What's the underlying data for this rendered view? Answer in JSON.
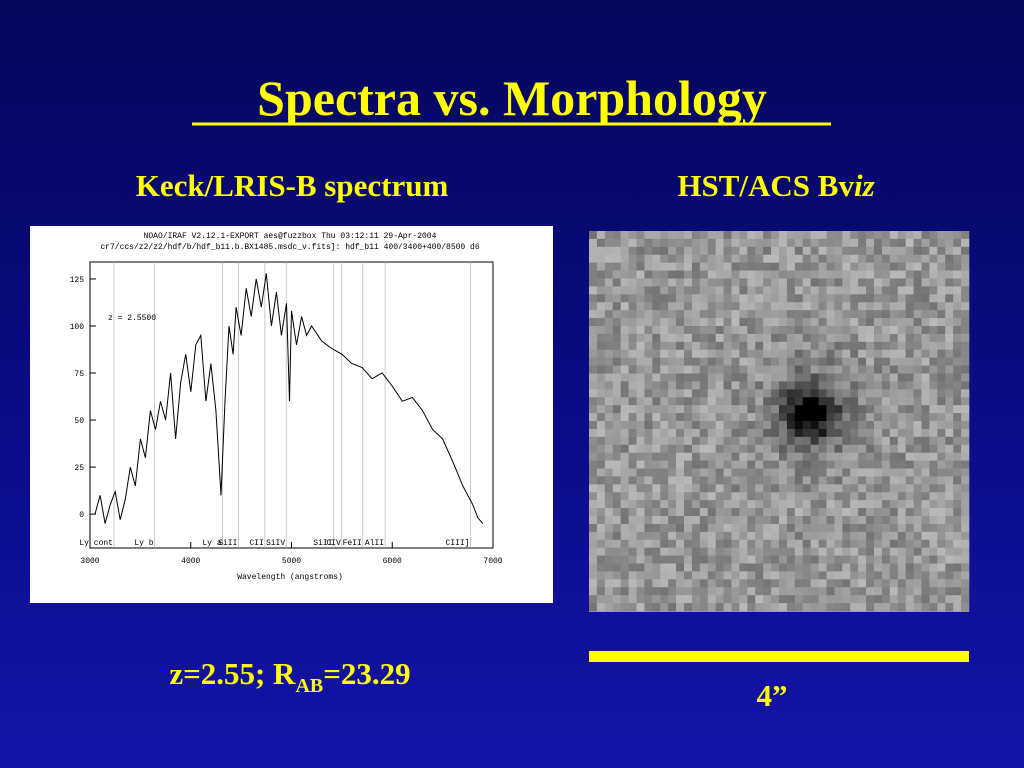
{
  "slide": {
    "title": "Spectra vs. Morphology",
    "left_heading": "Keck/LRIS-B spectrum",
    "right_heading": [
      "HST/ACS Bv",
      "iz"
    ],
    "caption": [
      "z=2.55; R",
      "AB",
      "=23.29"
    ],
    "scale_label": "4”"
  },
  "spectrum": {
    "header": [
      "NOAO/IRAF V2.12.1-EXPORT aes@fuzzbox Thu 03:12:11 29-Apr-2004",
      "cr7/ccs/z2/z2/hdf/b/hdf_b11.b.BX1485.msdc_v.fits]: hdf_b11 400/3400+400/8500 d6"
    ],
    "annotation": "z = 2.5500",
    "xlabel": "Wavelength (angstroms)",
    "xlim": [
      3000,
      7000
    ],
    "ylim": [
      -18,
      134
    ],
    "xticks": [
      3000,
      4000,
      5000,
      6000,
      7000
    ],
    "yticks": [
      0,
      25,
      50,
      75,
      100,
      125
    ],
    "color": "#000000",
    "x": [
      3050,
      3100,
      3150,
      3200,
      3250,
      3300,
      3350,
      3400,
      3450,
      3500,
      3550,
      3600,
      3650,
      3700,
      3750,
      3800,
      3850,
      3900,
      3950,
      4000,
      4050,
      4100,
      4150,
      4200,
      4250,
      4300,
      4340,
      4380,
      4420,
      4450,
      4500,
      4550,
      4600,
      4650,
      4700,
      4750,
      4800,
      4850,
      4900,
      4950,
      4980,
      5000,
      5050,
      5100,
      5150,
      5200,
      5300,
      5400,
      5500,
      5600,
      5700,
      5800,
      5900,
      6000,
      6100,
      6200,
      6300,
      6400,
      6500,
      6600,
      6700,
      6800,
      6850,
      6900
    ],
    "values": [
      0,
      10,
      -5,
      5,
      12,
      -3,
      8,
      25,
      15,
      40,
      30,
      55,
      45,
      60,
      50,
      75,
      40,
      70,
      85,
      65,
      90,
      95,
      60,
      80,
      55,
      10,
      60,
      100,
      85,
      110,
      95,
      120,
      105,
      125,
      110,
      128,
      100,
      118,
      95,
      112,
      60,
      108,
      90,
      105,
      95,
      100,
      92,
      88,
      85,
      80,
      78,
      72,
      75,
      68,
      60,
      62,
      55,
      45,
      40,
      28,
      15,
      5,
      -2,
      -5
    ],
    "lines": [
      {
        "label": "Ly cont",
        "x": 3238
      },
      {
        "label": "Ly b",
        "x": 3641
      },
      {
        "label": "Ly a",
        "x": 4316
      },
      {
        "label": "SiII",
        "x": 4473
      },
      {
        "label": "CII",
        "x": 4736
      },
      {
        "label": "SiIV",
        "x": 4947
      },
      {
        "label": "SiII",
        "x": 5417
      },
      {
        "label": "CIV",
        "x": 5499
      },
      {
        "label": "FeII",
        "x": 5708
      },
      {
        "label": "AlII",
        "x": 5929
      },
      {
        "label": "CIII]",
        "x": 6777
      }
    ]
  }
}
